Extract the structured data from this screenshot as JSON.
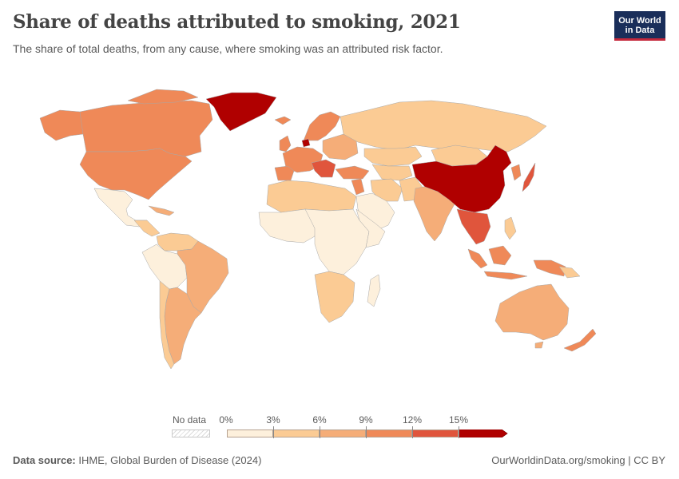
{
  "header": {
    "title": "Share of deaths attributed to smoking, 2021",
    "subtitle": "The share of total deaths, from any cause, where smoking was an attributed risk factor."
  },
  "logo": {
    "line1": "Our World",
    "line2": "in Data"
  },
  "legend": {
    "no_data_label": "No data",
    "bins": [
      {
        "label": "0%",
        "color": "#fdf0dc"
      },
      {
        "label": "3%",
        "color": "#fbcb94"
      },
      {
        "label": "6%",
        "color": "#f5ad78"
      },
      {
        "label": "9%",
        "color": "#ef8958"
      },
      {
        "label": "12%",
        "color": "#e0553c"
      },
      {
        "label": "15%",
        "color": "#b00000"
      }
    ]
  },
  "footer": {
    "source_label": "Data source:",
    "source_text": " IHME, Global Burden of Disease (2024)",
    "credit": "OurWorldinData.org/smoking | CC BY"
  }
}
